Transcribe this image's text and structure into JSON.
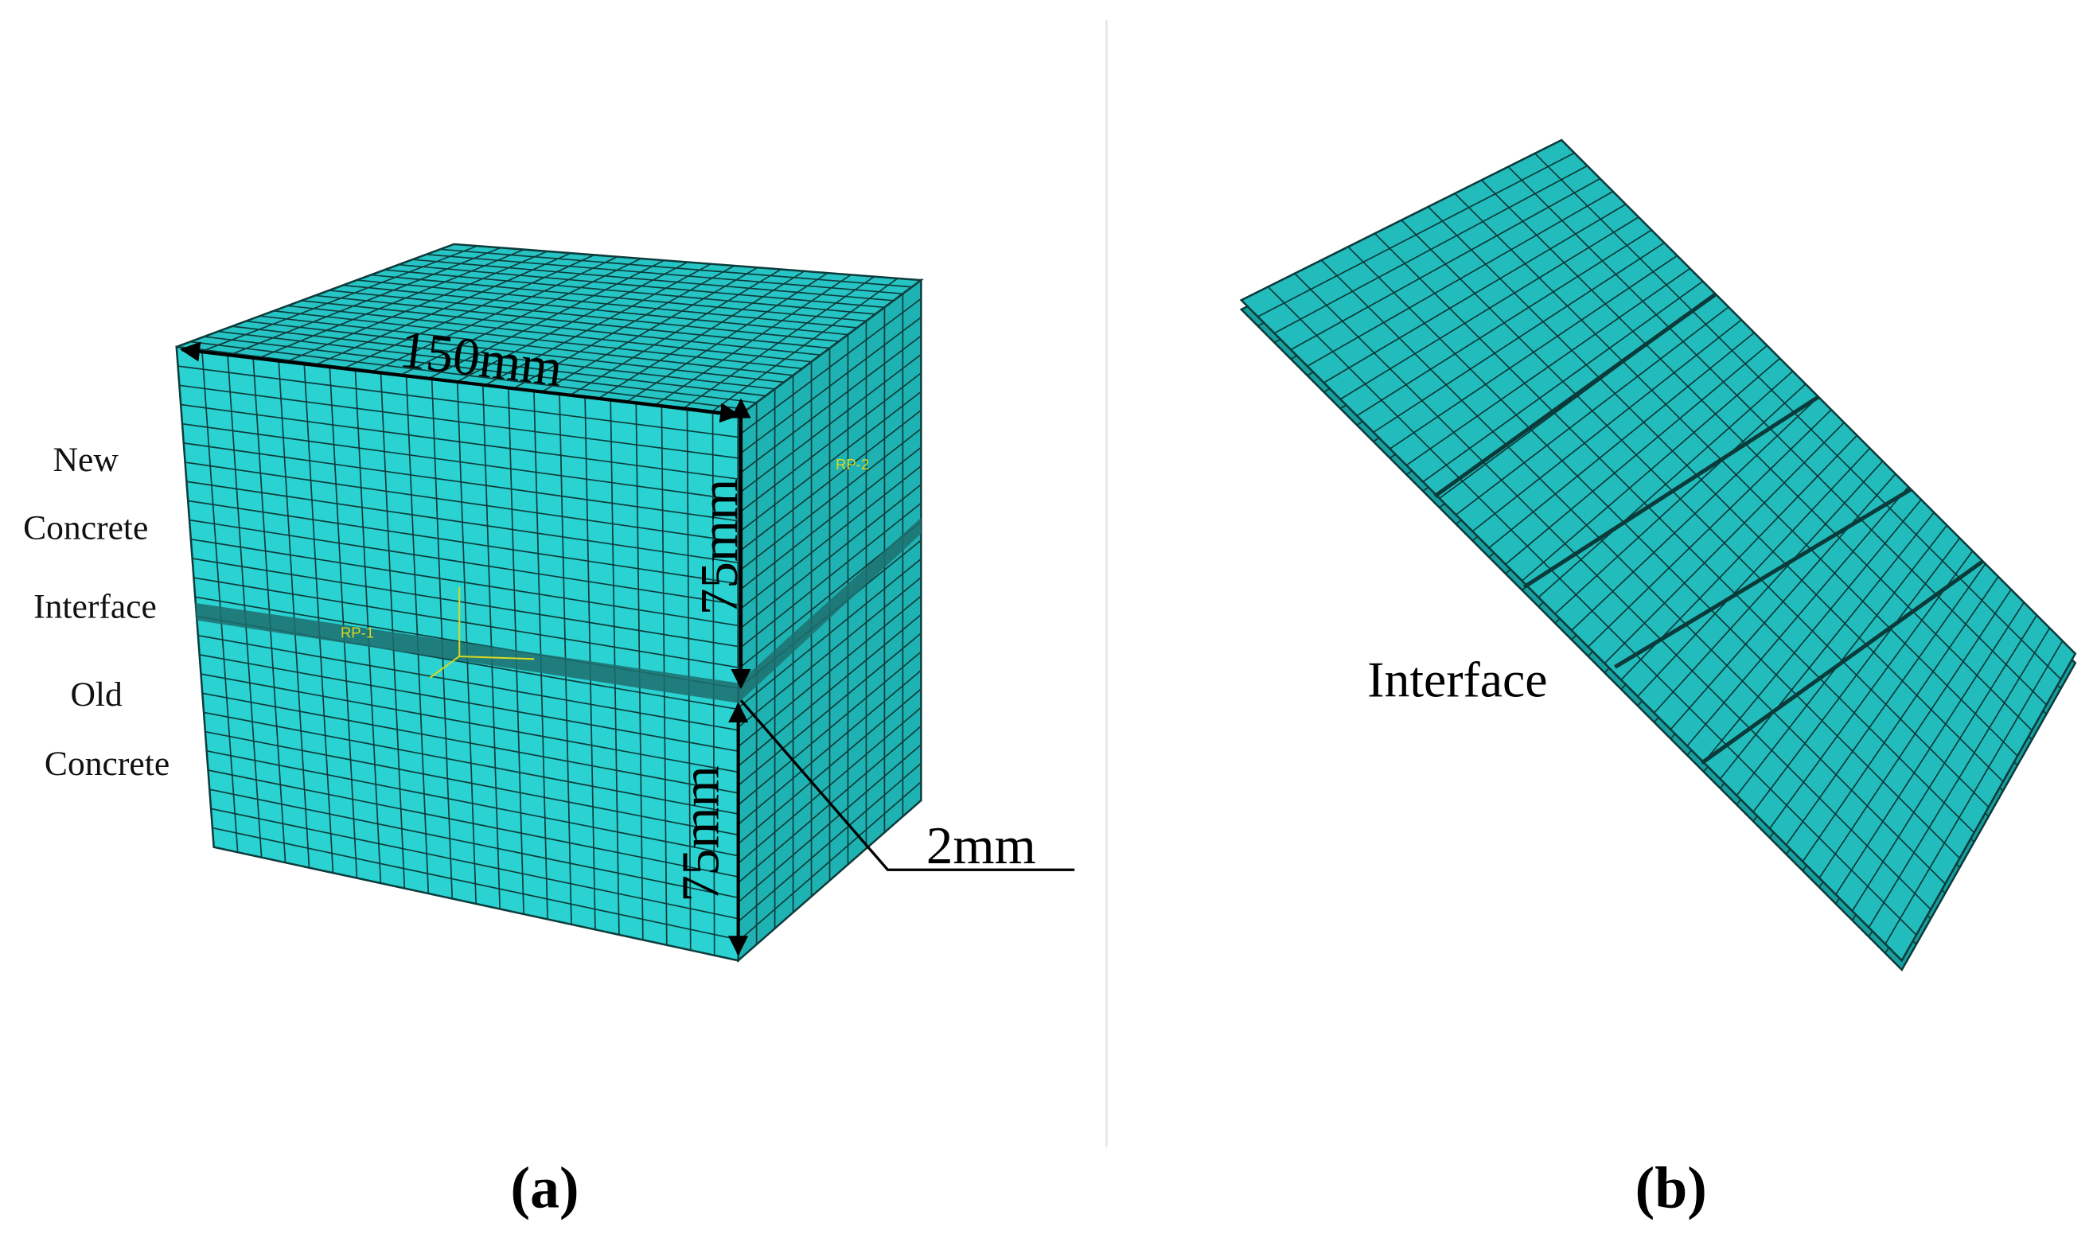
{
  "panel_a": {
    "labels": [
      "New",
      "Concrete",
      "Interface",
      "Old",
      "Concrete"
    ],
    "dimensions": {
      "width": "150mm",
      "upper_height": "75mm",
      "lower_height": "75mm",
      "interface_thickness": "2mm"
    },
    "reference_points": [
      "RP-1",
      "RP-2"
    ],
    "caption": "(a)"
  },
  "panel_b": {
    "label": "Interface",
    "caption": "(b)"
  }
}
